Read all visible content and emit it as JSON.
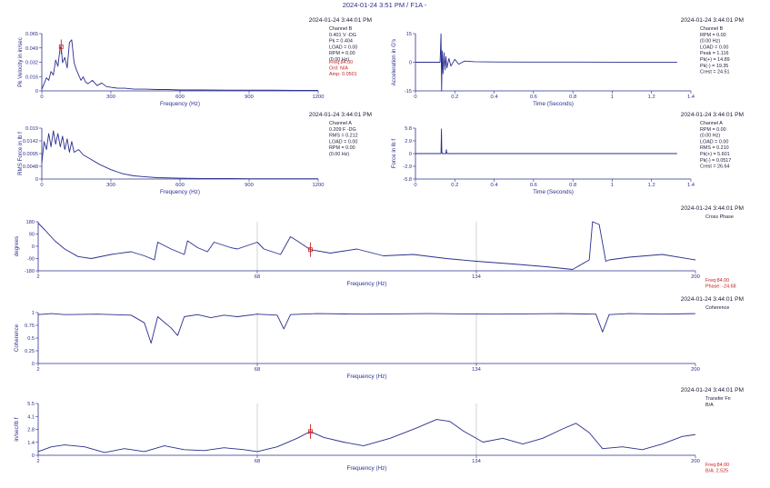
{
  "header": {
    "title": "2024-01-24 3:51 PM / F1A -"
  },
  "colors": {
    "trace": "#2a2f8e",
    "axis_text": "#2a2f8e",
    "cursor": "#c8201e",
    "readout_red": "#c8201e",
    "grid": "#c9c9c9",
    "text": "#1b1b3a"
  },
  "panels": [
    {
      "id": "p1",
      "timestamp": "2024-01-24 3:44:01 PM",
      "ylabel": "Pk Velocity in in/sec",
      "xlabel": "Frequency (Hz)",
      "yticks": [
        "0.065",
        "0.049",
        "0.032",
        "0.016",
        "0"
      ],
      "xticks": [
        "0",
        "300",
        "600",
        "900",
        "1200"
      ],
      "info": [
        "Channel B",
        "0.401 V -DG",
        "Pk = 0.404",
        "LOAD = 0.00",
        "RPM = 0.00",
        "(0.00 Hz)"
      ],
      "readout": [
        "Freq:84.00",
        "Ord: N/A",
        "Amp: 0.0501"
      ]
    },
    {
      "id": "p2",
      "timestamp": "2024-01-24 3:44:01 PM",
      "ylabel": "Acceleration in G's",
      "xlabel": "Time (Seconds)",
      "yticks": [
        "15",
        "0",
        "-15"
      ],
      "xticks": [
        "0",
        "0.2",
        "0.4",
        "0.6",
        "0.8",
        "1",
        "1.2",
        "1.4"
      ],
      "info": [
        "Channel B",
        "RPM = 0.00",
        "(0.00 Hz)",
        "LOAD = 0.00",
        "Peak = 1.116",
        "Pk(+) = 14.89",
        "Pk(-) = 19.35",
        "Crest = 24.51"
      ],
      "readout": []
    },
    {
      "id": "p3",
      "timestamp": "2024-01-24 3:44:01 PM",
      "ylabel": "RMS Force in lb f",
      "xlabel": "Frequency (Hz)",
      "yticks": [
        "0.019",
        "0.0142",
        "0.0095",
        "0.0048",
        "0"
      ],
      "xticks": [
        "0",
        "300",
        "600",
        "900",
        "1200"
      ],
      "info": [
        "Channel A",
        "0.209 F -DG",
        "RMS = 0.212",
        "LOAD = 0.00",
        "RPM = 0.00",
        "(0.00 Hz)"
      ],
      "readout": []
    },
    {
      "id": "p4",
      "timestamp": "2024-01-24 3:44:01 PM",
      "ylabel": "Force in lb f",
      "xlabel": "Time (Seconds)",
      "yticks": [
        "5.8",
        "2.9",
        "0",
        "-2.9",
        "-5.8"
      ],
      "xticks": [
        "0",
        "0.2",
        "0.4",
        "0.6",
        "0.8",
        "1",
        "1.2",
        "1.4"
      ],
      "info": [
        "Channel A",
        "RPM = 0.00",
        "(0.00 Hz)",
        "LOAD = 0.00",
        "RMS = 0.210",
        "Pk(+) = 5.601",
        "Pk(-) = 0.0517",
        "Crest = 26.64"
      ],
      "readout": []
    },
    {
      "id": "p5",
      "timestamp": "2024-01-24 3:44:01 PM",
      "ylabel": "degrees",
      "xlabel": "Frequency (Hz)",
      "yticks": [
        "180",
        "90",
        "0",
        "-90",
        "-180"
      ],
      "xticks": [
        "2",
        "68",
        "134",
        "200"
      ],
      "info": [
        "Cross Phase"
      ],
      "readout": [
        "Freq:84.00",
        "Phase: -24.68"
      ]
    },
    {
      "id": "p6",
      "timestamp": "2024-01-24 3:44:01 PM",
      "ylabel": "Coherence",
      "xlabel": "Frequency (Hz)",
      "yticks": [
        "1",
        "0.75",
        "0.5",
        "0.25",
        "0"
      ],
      "xticks": [
        "2",
        "68",
        "134",
        "200"
      ],
      "info": [
        "Coherence"
      ],
      "readout": []
    },
    {
      "id": "p7",
      "timestamp": "2024-01-24 3:44:01 PM",
      "ylabel": "in/sec/lb f",
      "xlabel": "Frequency (Hz)",
      "yticks": [
        "5.5",
        "4.1",
        "2.8",
        "1.4",
        "0"
      ],
      "xticks": [
        "2",
        "68",
        "134",
        "200"
      ],
      "info": [
        "Transfer Fn",
        "B/A"
      ],
      "readout": [
        "Freq:84.00",
        "B/A: 2.525"
      ]
    }
  ],
  "chart_data": [
    {
      "type": "line",
      "title": "",
      "xlabel": "Frequency (Hz)",
      "ylabel": "Pk Velocity in in/sec",
      "xlim": [
        0,
        1200
      ],
      "ylim": [
        0,
        0.065
      ],
      "cursor_x": 84,
      "x": [
        0,
        10,
        20,
        30,
        40,
        50,
        60,
        70,
        80,
        84,
        90,
        100,
        110,
        120,
        130,
        140,
        150,
        160,
        170,
        180,
        190,
        200,
        220,
        240,
        260,
        280,
        300,
        330,
        360,
        400,
        450,
        500,
        550,
        600,
        700,
        800,
        900,
        1000,
        1100,
        1200
      ],
      "series": [
        {
          "values": [
            0.002,
            0.008,
            0.015,
            0.012,
            0.022,
            0.018,
            0.035,
            0.028,
            0.05,
            0.0501,
            0.032,
            0.038,
            0.026,
            0.055,
            0.058,
            0.032,
            0.024,
            0.018,
            0.012,
            0.016,
            0.01,
            0.008,
            0.012,
            0.006,
            0.009,
            0.005,
            0.004,
            0.003,
            0.003,
            0.002,
            0.002,
            0.0015,
            0.0015,
            0.001,
            0.001,
            0.0008,
            0.0008,
            0.0008,
            0.0006,
            0.0006
          ]
        }
      ]
    },
    {
      "type": "line",
      "title": "",
      "xlabel": "Time (Seconds)",
      "ylabel": "Acceleration in G's",
      "xlim": [
        0,
        1.4
      ],
      "ylim": [
        -15,
        15
      ],
      "x": [
        0,
        0.1,
        0.125,
        0.13,
        0.133,
        0.136,
        0.14,
        0.145,
        0.15,
        0.155,
        0.16,
        0.17,
        0.18,
        0.2,
        0.22,
        0.25,
        0.3,
        0.4,
        0.6,
        0.8,
        1.0,
        1.2,
        1.33
      ],
      "series": [
        {
          "values": [
            0,
            0,
            0,
            14.89,
            -19.35,
            6,
            -6,
            5,
            -4,
            3,
            -3,
            2,
            -2,
            1.5,
            -1,
            0.6,
            0.3,
            0.15,
            0.1,
            0.08,
            0.05,
            0.05,
            0.05
          ]
        }
      ]
    },
    {
      "type": "line",
      "title": "",
      "xlabel": "Frequency (Hz)",
      "ylabel": "RMS Force in lb f",
      "xlim": [
        0,
        1200
      ],
      "ylim": [
        0,
        0.019
      ],
      "x": [
        0,
        10,
        20,
        30,
        40,
        50,
        60,
        70,
        80,
        90,
        100,
        110,
        120,
        130,
        140,
        160,
        180,
        200,
        250,
        300,
        350,
        400,
        450,
        500,
        600,
        700,
        800,
        900,
        1000,
        1200
      ],
      "series": [
        {
          "values": [
            0.006,
            0.014,
            0.011,
            0.017,
            0.012,
            0.018,
            0.013,
            0.017,
            0.012,
            0.016,
            0.011,
            0.015,
            0.01,
            0.014,
            0.01,
            0.011,
            0.009,
            0.008,
            0.0055,
            0.0035,
            0.002,
            0.0012,
            0.0008,
            0.0005,
            0.0003,
            0.0002,
            0.0002,
            0.0001,
            0.0001,
            0.0001
          ]
        }
      ]
    },
    {
      "type": "line",
      "title": "",
      "xlabel": "Time (Seconds)",
      "ylabel": "Force in lb f",
      "xlim": [
        0,
        1.4
      ],
      "ylim": [
        -5.8,
        5.8
      ],
      "x": [
        0,
        0.13,
        0.132,
        0.134,
        0.136,
        0.14,
        0.155,
        0.157,
        0.16,
        0.2,
        0.6,
        1.0,
        1.33
      ],
      "series": [
        {
          "values": [
            0,
            0,
            5.601,
            0.5,
            0,
            0,
            0,
            0.9,
            0,
            0,
            0,
            0,
            0
          ]
        }
      ]
    },
    {
      "type": "line",
      "title": "",
      "xlabel": "Frequency (Hz)",
      "ylabel": "degrees",
      "xlim": [
        2,
        200
      ],
      "ylim": [
        -180,
        180
      ],
      "cursor_x": 84,
      "x": [
        2,
        4,
        7,
        10,
        14,
        18,
        24,
        30,
        34,
        37,
        38,
        42,
        46,
        47,
        50,
        53,
        55,
        60,
        62,
        68,
        70,
        75,
        78,
        80,
        84,
        90,
        98,
        106,
        115,
        125,
        134,
        145,
        155,
        163,
        168,
        169,
        171,
        173,
        174,
        180,
        190,
        200
      ],
      "series": [
        {
          "values": [
            170,
            120,
            40,
            -20,
            -75,
            -90,
            -60,
            -40,
            -70,
            -100,
            30,
            -20,
            -60,
            40,
            -10,
            -40,
            30,
            -10,
            -20,
            30,
            -20,
            -60,
            70,
            40,
            -24.68,
            -50,
            -20,
            -70,
            -60,
            -90,
            -110,
            -130,
            -150,
            -170,
            -100,
            180,
            160,
            -110,
            -100,
            -80,
            -60,
            -100
          ]
        }
      ]
    },
    {
      "type": "line",
      "title": "",
      "xlabel": "Frequency (Hz)",
      "ylabel": "Coherence",
      "xlim": [
        2,
        200
      ],
      "ylim": [
        0,
        1
      ],
      "x": [
        2,
        6,
        10,
        20,
        30,
        34,
        36,
        38,
        42,
        44,
        46,
        50,
        54,
        58,
        62,
        68,
        74,
        76,
        78,
        86,
        100,
        120,
        140,
        160,
        170,
        172,
        174,
        180,
        190,
        200
      ],
      "series": [
        {
          "values": [
            0.96,
            0.98,
            0.96,
            0.97,
            0.95,
            0.8,
            0.4,
            0.92,
            0.7,
            0.55,
            0.92,
            0.96,
            0.9,
            0.95,
            0.92,
            0.97,
            0.95,
            0.68,
            0.96,
            0.98,
            0.97,
            0.98,
            0.97,
            0.98,
            0.97,
            0.62,
            0.96,
            0.98,
            0.97,
            0.98
          ]
        }
      ]
    },
    {
      "type": "line",
      "title": "",
      "xlabel": "Frequency (Hz)",
      "ylabel": "in/sec/lb f",
      "xlim": [
        2,
        200
      ],
      "ylim": [
        0,
        5.5
      ],
      "cursor_x": 84,
      "x": [
        2,
        6,
        10,
        16,
        22,
        28,
        34,
        40,
        46,
        52,
        58,
        64,
        68,
        74,
        80,
        84,
        88,
        94,
        100,
        108,
        116,
        122,
        126,
        130,
        136,
        142,
        148,
        154,
        160,
        164,
        168,
        172,
        178,
        184,
        190,
        196,
        200
      ],
      "series": [
        {
          "values": [
            0.4,
            0.9,
            1.1,
            0.9,
            0.3,
            0.7,
            0.4,
            1.0,
            0.6,
            0.5,
            0.8,
            0.6,
            0.4,
            0.9,
            1.8,
            2.525,
            1.9,
            1.4,
            1.0,
            1.8,
            2.9,
            3.8,
            3.6,
            2.6,
            1.4,
            1.8,
            1.2,
            1.8,
            2.8,
            3.4,
            2.4,
            0.7,
            0.9,
            0.6,
            1.2,
            2.0,
            2.2
          ]
        }
      ]
    }
  ]
}
